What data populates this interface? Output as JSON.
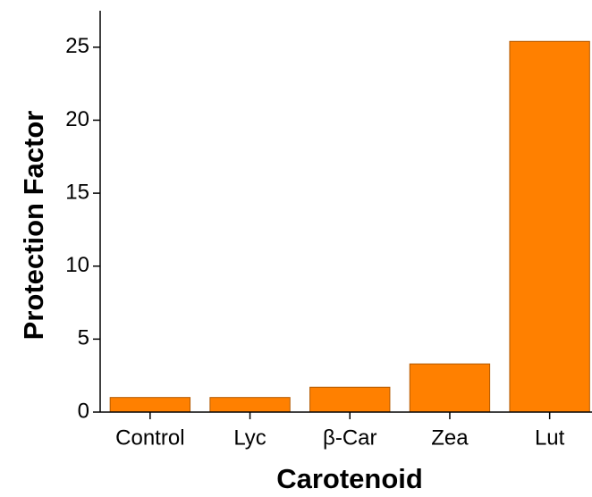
{
  "chart_data": {
    "type": "bar",
    "categories": [
      "Control",
      "Lyc",
      "β-Car",
      "Zea",
      "Lut"
    ],
    "values": [
      1.0,
      1.0,
      1.7,
      3.3,
      25.4
    ],
    "color": "#ff8000",
    "xlabel": "Carotenoid",
    "ylabel": "Protection Factor",
    "ylim": [
      0,
      27.5
    ],
    "yticks": [
      0,
      5,
      10,
      15,
      20,
      25
    ]
  }
}
